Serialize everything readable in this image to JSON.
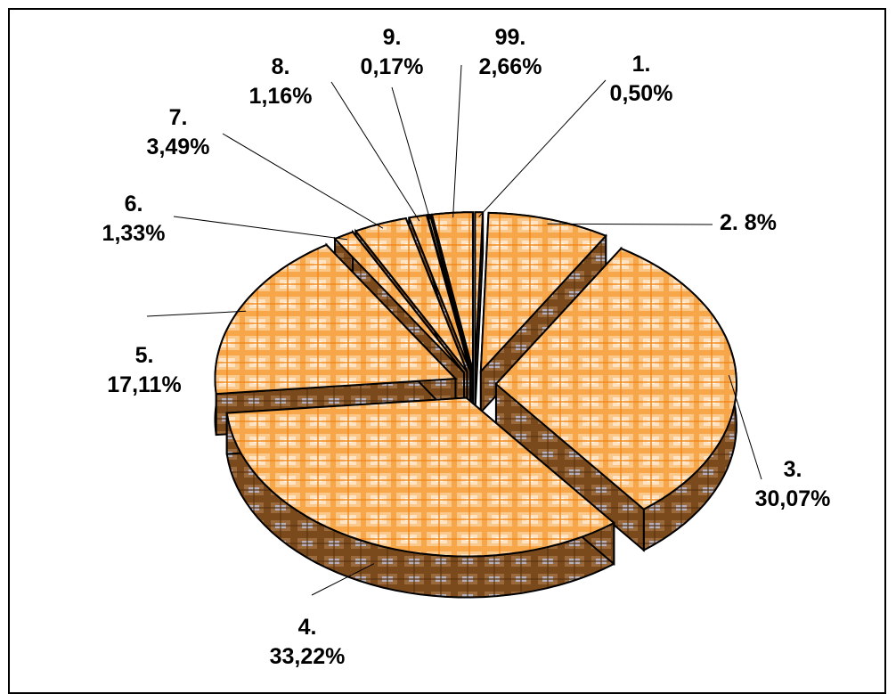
{
  "chart_data": {
    "type": "pie",
    "style": "3d-exploded",
    "title": "",
    "slices": [
      {
        "num": "1.",
        "label": "0,50%",
        "value": 0.5
      },
      {
        "num": "2.",
        "label": "8%",
        "value": 8.0
      },
      {
        "num": "3.",
        "label": "30,07%",
        "value": 30.07
      },
      {
        "num": "4.",
        "label": "33,22%",
        "value": 33.22
      },
      {
        "num": "5.",
        "label": "17,11%",
        "value": 17.11
      },
      {
        "num": "6.",
        "label": "1,33%",
        "value": 1.33
      },
      {
        "num": "7.",
        "label": "3,49%",
        "value": 3.49
      },
      {
        "num": "8.",
        "label": "1,16%",
        "value": 1.16
      },
      {
        "num": "9.",
        "label": "0,17%",
        "value": 0.17
      },
      {
        "num": "99.",
        "label": "2,66%",
        "value": 2.66
      }
    ],
    "colors": {
      "top": "#f7a64a",
      "top_light": "#fff2e2",
      "side": "#8a5522",
      "side_light": "#a8a8b8",
      "outline": "#000000"
    },
    "legend": "none"
  }
}
